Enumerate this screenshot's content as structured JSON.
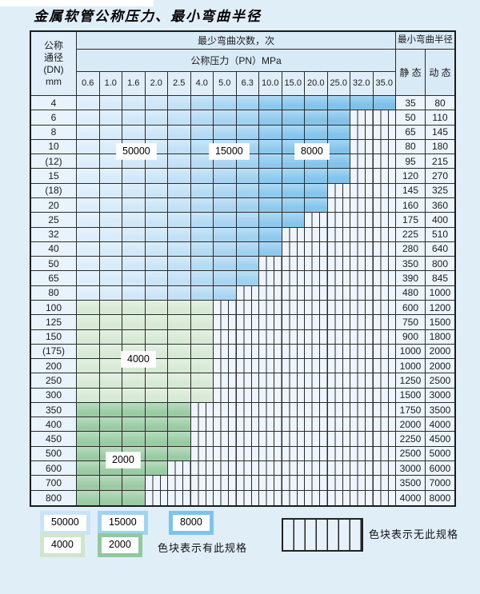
{
  "page": {
    "title": "金属软管公称压力、最小弯曲半径"
  },
  "table": {
    "dn_header": {
      "line1": "公称",
      "line2": "通径",
      "line3": "(DN)",
      "line4": "mm"
    },
    "bend_times_header": "最少弯曲次数，次",
    "pn_header": "公称压力（PN）MPa",
    "radius_header": "最小弯曲半径",
    "static_header": "静 态",
    "dynamic_header": "动 态",
    "pressure_columns": [
      "0.6",
      "1.0",
      "1.6",
      "2.0",
      "2.5",
      "4.0",
      "5.0",
      "6.3",
      "10.0",
      "15.0",
      "20.0",
      "25.0",
      "32.0",
      "35.0"
    ],
    "rows": [
      {
        "dn": "4",
        "cols": 14,
        "group": "blue",
        "static": "35",
        "dynamic": "80"
      },
      {
        "dn": "6",
        "cols": 12,
        "group": "blue",
        "static": "50",
        "dynamic": "110"
      },
      {
        "dn": "8",
        "cols": 12,
        "group": "blue",
        "static": "65",
        "dynamic": "145"
      },
      {
        "dn": "10",
        "cols": 12,
        "group": "blue",
        "static": "80",
        "dynamic": "180"
      },
      {
        "dn": "(12)",
        "cols": 12,
        "group": "blue",
        "static": "95",
        "dynamic": "215"
      },
      {
        "dn": "15",
        "cols": 12,
        "group": "blue",
        "static": "120",
        "dynamic": "270"
      },
      {
        "dn": "(18)",
        "cols": 11,
        "group": "blue",
        "static": "145",
        "dynamic": "325"
      },
      {
        "dn": "20",
        "cols": 11,
        "group": "blue",
        "static": "160",
        "dynamic": "360"
      },
      {
        "dn": "25",
        "cols": 10,
        "group": "blue",
        "static": "175",
        "dynamic": "400"
      },
      {
        "dn": "32",
        "cols": 9,
        "group": "blue",
        "static": "225",
        "dynamic": "510"
      },
      {
        "dn": "40",
        "cols": 9,
        "group": "blue",
        "static": "280",
        "dynamic": "640"
      },
      {
        "dn": "50",
        "cols": 8,
        "group": "blue",
        "static": "350",
        "dynamic": "800"
      },
      {
        "dn": "65",
        "cols": 8,
        "group": "blue",
        "static": "390",
        "dynamic": "845"
      },
      {
        "dn": "80",
        "cols": 7,
        "group": "blue",
        "static": "480",
        "dynamic": "1000"
      },
      {
        "dn": "100",
        "cols": 6,
        "group": "green-4000",
        "static": "600",
        "dynamic": "1200"
      },
      {
        "dn": "125",
        "cols": 6,
        "group": "green-4000",
        "static": "750",
        "dynamic": "1500"
      },
      {
        "dn": "150",
        "cols": 6,
        "group": "green-4000",
        "static": "900",
        "dynamic": "1800"
      },
      {
        "dn": "(175)",
        "cols": 6,
        "group": "green-4000",
        "static": "1000",
        "dynamic": "2000"
      },
      {
        "dn": "200",
        "cols": 6,
        "group": "green-4000",
        "static": "1000",
        "dynamic": "2000"
      },
      {
        "dn": "250",
        "cols": 6,
        "group": "green-4000",
        "static": "1250",
        "dynamic": "2500"
      },
      {
        "dn": "300",
        "cols": 6,
        "group": "green-4000",
        "static": "1500",
        "dynamic": "3000"
      },
      {
        "dn": "350",
        "cols": 5,
        "group": "green-2000",
        "static": "1750",
        "dynamic": "3500"
      },
      {
        "dn": "400",
        "cols": 5,
        "group": "green-2000",
        "static": "2000",
        "dynamic": "4000"
      },
      {
        "dn": "450",
        "cols": 5,
        "group": "green-2000",
        "static": "2250",
        "dynamic": "4500"
      },
      {
        "dn": "500",
        "cols": 5,
        "group": "green-2000",
        "static": "2500",
        "dynamic": "5000"
      },
      {
        "dn": "600",
        "cols": 4,
        "group": "green-2000",
        "static": "3000",
        "dynamic": "6000"
      },
      {
        "dn": "700",
        "cols": 3,
        "group": "green-2000",
        "static": "3500",
        "dynamic": "7000"
      },
      {
        "dn": "800",
        "cols": 3,
        "group": "green-2000",
        "static": "4000",
        "dynamic": "8000"
      }
    ]
  },
  "region_labels": {
    "b50000": "50000",
    "b15000": "15000",
    "b8000": "8000",
    "g4000": "4000",
    "g2000": "2000"
  },
  "legend": {
    "swatches": [
      {
        "label": "50000",
        "color": "#c9e4f7"
      },
      {
        "label": "15000",
        "color": "#9ed3f1"
      },
      {
        "label": "8000",
        "color": "#7dc3ec"
      },
      {
        "label": "4000",
        "color": "#cfe6cd"
      },
      {
        "label": "2000",
        "color": "#90c99c"
      }
    ],
    "has_spec_text": "色块表示有此规格",
    "no_spec_text": "色块表示无此规格"
  },
  "colors": {
    "blue_ramp": [
      "#dceefb",
      "#d7ebfa",
      "#d1e8f9",
      "#cbe5f8",
      "#c3e1f6",
      "#b4daf4",
      "#aad5f2",
      "#9fd1f0",
      "#8dc9ee",
      "#88c7ed",
      "#84c5ec",
      "#80c3eb",
      "#7cc2ea",
      "#79c0ea"
    ],
    "green_4000": "#d7ead5",
    "green_2000": "#9acca4"
  }
}
